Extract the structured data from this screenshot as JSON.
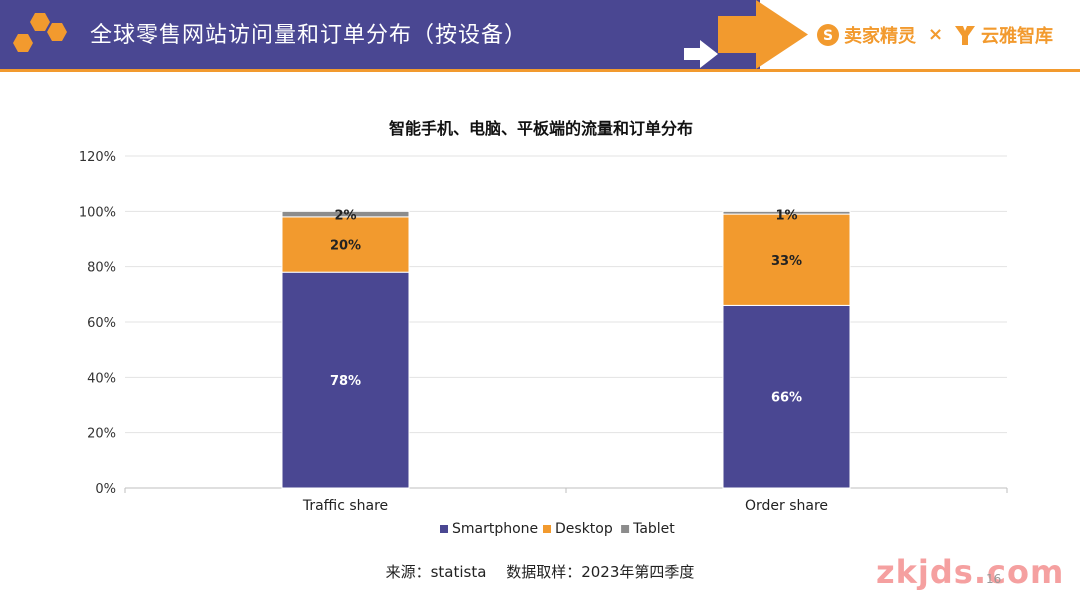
{
  "header": {
    "title": "全球零售网站访问量和订单分布（按设备）",
    "brand_left": "卖家精灵",
    "brand_sep": "×",
    "brand_right": "云雅智库",
    "colors": {
      "band": "#4A4792",
      "accent": "#F29A2E"
    }
  },
  "chart_data": {
    "type": "bar",
    "stacked": true,
    "title": "智能手机、电脑、平板端的流量和订单分布",
    "categories": [
      "Traffic share",
      "Order share"
    ],
    "series": [
      {
        "name": "Smartphone",
        "color": "#4A4792",
        "values": [
          78,
          66
        ],
        "labels": [
          "78%",
          "66%"
        ]
      },
      {
        "name": "Desktop",
        "color": "#F29A2E",
        "values": [
          20,
          33
        ],
        "labels": [
          "20%",
          "33%"
        ]
      },
      {
        "name": "Tablet",
        "color": "#8C8C8C",
        "values": [
          2,
          1
        ],
        "labels": [
          "2%",
          "1%"
        ]
      }
    ],
    "ylim": [
      0,
      120
    ],
    "yticks": [
      "0%",
      "20%",
      "40%",
      "60%",
      "80%",
      "100%",
      "120%"
    ],
    "ytick_values": [
      0,
      20,
      40,
      60,
      80,
      100,
      120
    ],
    "grid": true,
    "legend_position": "bottom"
  },
  "footer": {
    "source": "来源：statista　 数据取样：2023年第四季度",
    "watermark": "zkjds.com",
    "page": "16"
  }
}
